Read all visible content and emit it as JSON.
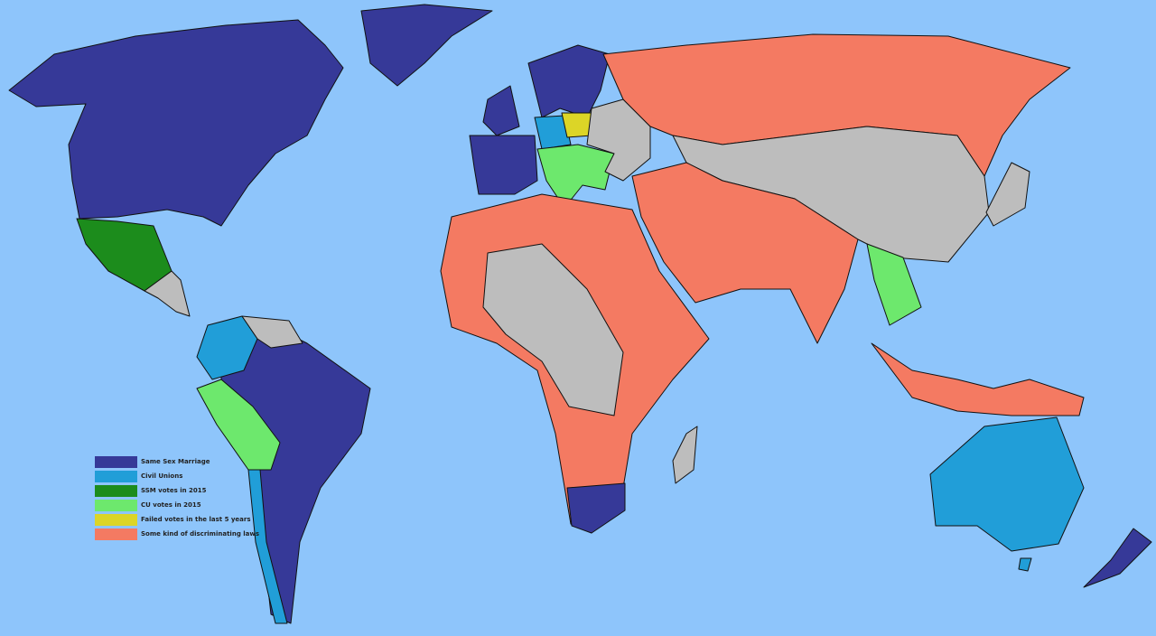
{
  "colors": {
    "ocean": "#8ec5fb",
    "no_data": "#bdbdbd",
    "border": "#111111"
  },
  "legend": [
    {
      "label": "Same Sex Marriage",
      "color": "#363998"
    },
    {
      "label": "Civil Unions",
      "color": "#219ed8"
    },
    {
      "label": "SSM votes in 2015",
      "color": "#1c8c1c"
    },
    {
      "label": "CU votes in 2015",
      "color": "#6de86d"
    },
    {
      "label": "Failed votes in the last 5 years",
      "color": "#dcd527"
    },
    {
      "label": "Some kind of discriminating laws",
      "color": "#f47a62"
    }
  ]
}
